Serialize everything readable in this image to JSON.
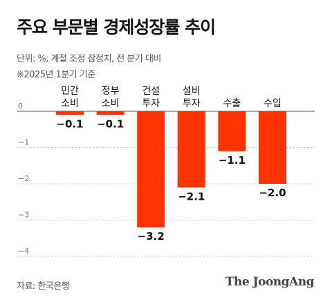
{
  "title": "주요 부문별 경제성장률 추이",
  "subtitle_1": "단위: %, 계절 조정 잠정치, 전 분기 대비",
  "subtitle_2": "※2025년 1분기 기준",
  "source": "자료: 한국은행",
  "logo": "The JoongAng",
  "colors": {
    "bar": "#ff3300",
    "grid": "#c8c8c8",
    "axis": "#555555"
  },
  "chart_data": {
    "type": "bar",
    "categories": [
      [
        "민간",
        "소비"
      ],
      [
        "정부",
        "소비"
      ],
      [
        "건설",
        "투자"
      ],
      [
        "설비",
        "투자"
      ],
      [
        "수출"
      ],
      [
        "수입"
      ]
    ],
    "values": [
      -0.1,
      -0.1,
      -3.2,
      -2.1,
      -1.1,
      -2.0
    ],
    "data_labels": [
      "−0.1",
      "−0.1",
      "−3.2",
      "−2.1",
      "−1.1",
      "−2.0"
    ],
    "y_ticks": [
      0,
      -1,
      -2,
      -3,
      -4
    ],
    "y_tick_labels": [
      "0",
      "−1",
      "−2",
      "−3",
      "−4"
    ],
    "ylim": [
      -4,
      0
    ],
    "grid": true,
    "xlabel": "",
    "ylabel": ""
  }
}
